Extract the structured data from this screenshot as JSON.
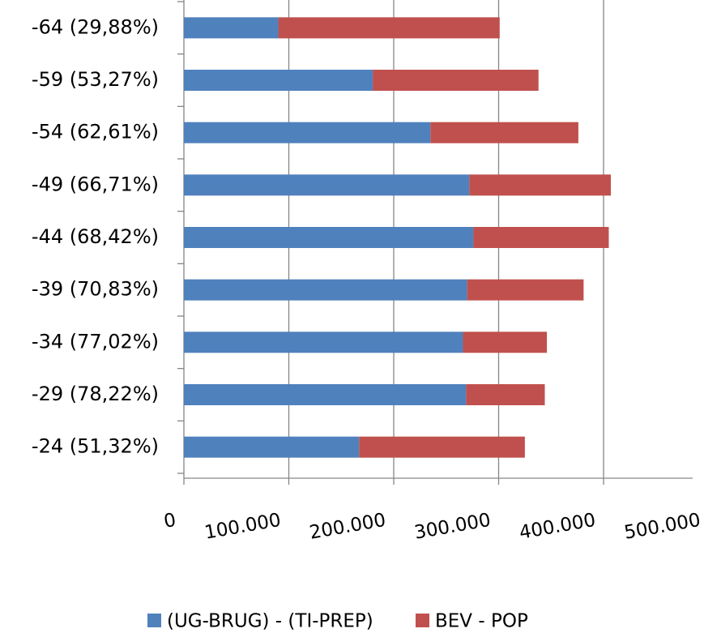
{
  "chart_data": {
    "type": "stacked-bar-horizontal",
    "categories": [
      "-64 (29,88%)",
      "-59 (53,27%)",
      "-54 (62,61%)",
      "-49 (66,71%)",
      "-44 (68,42%)",
      "-39 (70,83%)",
      "-34 (77,02%)",
      "-29 (78,22%)",
      "-24 (51,32%)"
    ],
    "series": [
      {
        "name": "(UG-BRUG) - (TI-PREP)",
        "color": "#4f81bd",
        "values": [
          90000,
          180000,
          235000,
          272000,
          276000,
          270000,
          266000,
          269000,
          167000
        ]
      },
      {
        "name": "BEV - POP",
        "color": "#c0504d",
        "values": [
          211000,
          158000,
          141000,
          135000,
          129000,
          111000,
          80000,
          75000,
          158000
        ]
      }
    ],
    "xlim": [
      0,
      500000
    ],
    "xticks": [
      0,
      {
        "value": 100000,
        "label": "100.000"
      },
      {
        "value": 200000,
        "label": "200.000"
      },
      {
        "value": 300000,
        "label": "300.000"
      },
      {
        "value": 400000,
        "label": "400.000"
      },
      {
        "value": 500000,
        "label": "500.000"
      }
    ],
    "grid": true,
    "legend": "bottom"
  }
}
